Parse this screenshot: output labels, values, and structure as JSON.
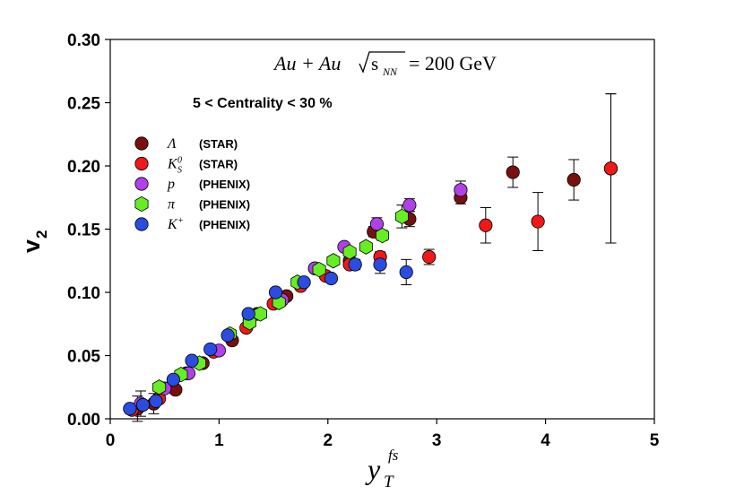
{
  "chart_data": {
    "type": "scatter",
    "title": "Au + Au √s_NN = 200 GeV",
    "title_parts": {
      "system": "Au + Au",
      "sqrt_label": "s",
      "sqrt_sub": "NN",
      "energy": "= 200 GeV"
    },
    "subtitle": "5 < Centrality < 30 %",
    "xlabel": {
      "base": "y",
      "sub": "T",
      "sup": "fs"
    },
    "ylabel": {
      "base": "v",
      "sub": "2"
    },
    "xlim": [
      0,
      5
    ],
    "ylim": [
      0,
      0.3
    ],
    "xticks": [
      "0",
      "1",
      "2",
      "3",
      "4",
      "5"
    ],
    "yticks": [
      "0.00",
      "0.05",
      "0.10",
      "0.15",
      "0.20",
      "0.25",
      "0.30"
    ],
    "legend_position": "upper-left",
    "series": [
      {
        "name": "Λ (STAR)",
        "symbol": "Λ",
        "sub": "",
        "sup": "",
        "experiment": "(STAR)",
        "marker": "circle",
        "color": "#7a0f0f",
        "points": [
          {
            "x": 0.25,
            "y": 0.008,
            "err": 0.01
          },
          {
            "x": 0.4,
            "y": 0.012,
            "err": 0.008
          },
          {
            "x": 0.6,
            "y": 0.023,
            "err": 0
          },
          {
            "x": 0.85,
            "y": 0.044,
            "err": 0
          },
          {
            "x": 1.12,
            "y": 0.062,
            "err": 0
          },
          {
            "x": 1.35,
            "y": 0.083,
            "err": 0
          },
          {
            "x": 1.62,
            "y": 0.097,
            "err": 0
          },
          {
            "x": 1.88,
            "y": 0.119,
            "err": 0
          },
          {
            "x": 2.2,
            "y": 0.125,
            "err": 0
          },
          {
            "x": 2.42,
            "y": 0.148,
            "err": 0.004
          },
          {
            "x": 2.75,
            "y": 0.158,
            "err": 0.006
          },
          {
            "x": 3.22,
            "y": 0.175,
            "err": 0.005
          },
          {
            "x": 3.7,
            "y": 0.195,
            "err": 0.012
          },
          {
            "x": 4.26,
            "y": 0.189,
            "err": 0.016
          },
          {
            "x": 4.6,
            "y": 0.198,
            "err": 0.059
          }
        ]
      },
      {
        "name": "K_S^0 (STAR)",
        "symbol": "K",
        "sub": "S",
        "sup": "0",
        "experiment": "(STAR)",
        "marker": "circle",
        "color": "#f01818",
        "points": [
          {
            "x": 0.2,
            "y": 0.007,
            "err": 0
          },
          {
            "x": 0.45,
            "y": 0.016,
            "err": 0
          },
          {
            "x": 0.7,
            "y": 0.036,
            "err": 0
          },
          {
            "x": 0.95,
            "y": 0.053,
            "err": 0
          },
          {
            "x": 1.25,
            "y": 0.072,
            "err": 0
          },
          {
            "x": 1.5,
            "y": 0.091,
            "err": 0
          },
          {
            "x": 1.75,
            "y": 0.105,
            "err": 0
          },
          {
            "x": 1.98,
            "y": 0.113,
            "err": 0
          },
          {
            "x": 2.2,
            "y": 0.122,
            "err": 0.003
          },
          {
            "x": 2.48,
            "y": 0.128,
            "err": 0.004
          },
          {
            "x": 2.93,
            "y": 0.128,
            "err": 0.006
          },
          {
            "x": 3.45,
            "y": 0.153,
            "err": 0.014
          },
          {
            "x": 3.93,
            "y": 0.156,
            "err": 0.023
          },
          {
            "x": 4.6,
            "y": 0.198,
            "err": 0.059
          }
        ]
      },
      {
        "name": "p (PHENIX)",
        "symbol": "p",
        "sub": "",
        "sup": "",
        "experiment": "(PHENIX)",
        "marker": "circle",
        "color": "#b040e8",
        "points": [
          {
            "x": 0.28,
            "y": 0.012,
            "err": 0.01
          },
          {
            "x": 0.5,
            "y": 0.024,
            "err": 0
          },
          {
            "x": 0.72,
            "y": 0.036,
            "err": 0
          },
          {
            "x": 1.0,
            "y": 0.054,
            "err": 0
          },
          {
            "x": 1.28,
            "y": 0.078,
            "err": 0
          },
          {
            "x": 1.58,
            "y": 0.094,
            "err": 0
          },
          {
            "x": 1.88,
            "y": 0.119,
            "err": 0
          },
          {
            "x": 2.15,
            "y": 0.136,
            "err": 0
          },
          {
            "x": 2.45,
            "y": 0.154,
            "err": 0.005
          },
          {
            "x": 2.75,
            "y": 0.169,
            "err": 0.005
          },
          {
            "x": 3.22,
            "y": 0.181,
            "err": 0.007
          }
        ]
      },
      {
        "name": "π (PHENIX)",
        "symbol": "π",
        "sub": "",
        "sup": "",
        "experiment": "(PHENIX)",
        "marker": "hexagon",
        "color": "#66ee22",
        "points": [
          {
            "x": 0.45,
            "y": 0.025,
            "err": 0
          },
          {
            "x": 0.65,
            "y": 0.035,
            "err": 0
          },
          {
            "x": 0.82,
            "y": 0.044,
            "err": 0
          },
          {
            "x": 1.1,
            "y": 0.067,
            "err": 0
          },
          {
            "x": 1.28,
            "y": 0.076,
            "err": 0
          },
          {
            "x": 1.38,
            "y": 0.083,
            "err": 0
          },
          {
            "x": 1.55,
            "y": 0.092,
            "err": 0
          },
          {
            "x": 1.72,
            "y": 0.108,
            "err": 0
          },
          {
            "x": 1.92,
            "y": 0.118,
            "err": 0
          },
          {
            "x": 2.05,
            "y": 0.125,
            "err": 0
          },
          {
            "x": 2.2,
            "y": 0.132,
            "err": 0
          },
          {
            "x": 2.35,
            "y": 0.136,
            "err": 0
          },
          {
            "x": 2.5,
            "y": 0.145,
            "err": 0.004
          },
          {
            "x": 2.68,
            "y": 0.16,
            "err": 0.009
          }
        ]
      },
      {
        "name": "K+ (PHENIX)",
        "symbol": "K",
        "sub": "",
        "sup": "+",
        "experiment": "(PHENIX)",
        "marker": "circle",
        "color": "#2b4ce0",
        "points": [
          {
            "x": 0.18,
            "y": 0.008,
            "err": 0
          },
          {
            "x": 0.3,
            "y": 0.011,
            "err": 0
          },
          {
            "x": 0.42,
            "y": 0.014,
            "err": 0
          },
          {
            "x": 0.58,
            "y": 0.031,
            "err": 0
          },
          {
            "x": 0.75,
            "y": 0.046,
            "err": 0
          },
          {
            "x": 0.92,
            "y": 0.055,
            "err": 0
          },
          {
            "x": 1.08,
            "y": 0.066,
            "err": 0
          },
          {
            "x": 1.27,
            "y": 0.083,
            "err": 0
          },
          {
            "x": 1.52,
            "y": 0.1,
            "err": 0
          },
          {
            "x": 1.78,
            "y": 0.108,
            "err": 0
          },
          {
            "x": 2.03,
            "y": 0.111,
            "err": 0
          },
          {
            "x": 2.25,
            "y": 0.122,
            "err": 0.004
          },
          {
            "x": 2.48,
            "y": 0.122,
            "err": 0.007
          },
          {
            "x": 2.72,
            "y": 0.116,
            "err": 0.01
          }
        ]
      }
    ]
  }
}
